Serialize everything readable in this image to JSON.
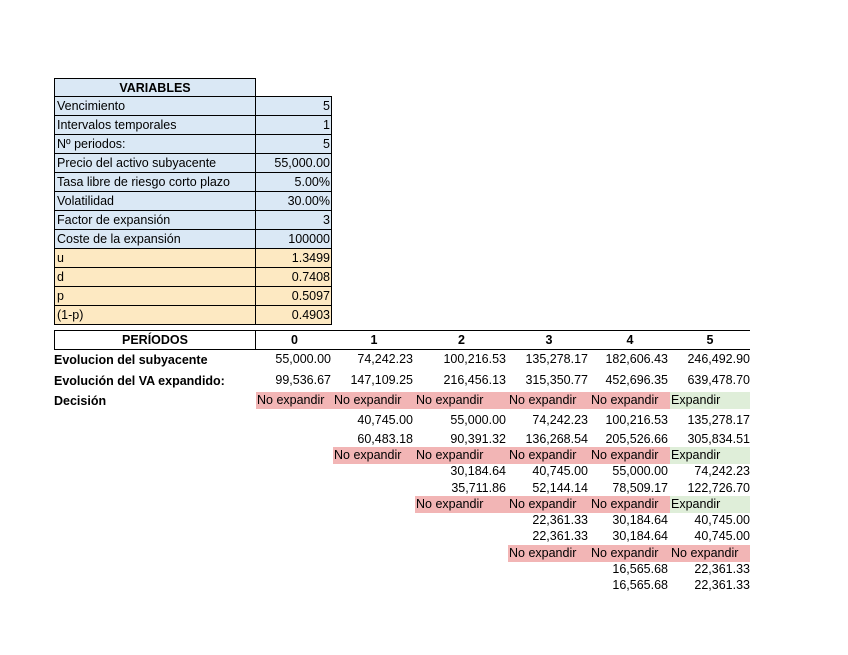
{
  "variables": {
    "header": "VARIABLES",
    "rows": [
      {
        "label": "Vencimiento",
        "value": "5"
      },
      {
        "label": "Intervalos temporales",
        "value": "1"
      },
      {
        "label": "Nº periodos:",
        "value": "5"
      },
      {
        "label": "Precio del activo subyacente",
        "value": "55,000.00"
      },
      {
        "label": "Tasa libre de riesgo corto plazo",
        "value": "5.00%"
      },
      {
        "label": "Volatilidad",
        "value": "30.00%"
      },
      {
        "label": "Factor de expansión",
        "value": "3"
      },
      {
        "label": "Coste de la expansión",
        "value": "100000"
      },
      {
        "label": "u",
        "value": "1.3499"
      },
      {
        "label": "d",
        "value": "0.7408"
      },
      {
        "label": "p",
        "value": "0.5097"
      },
      {
        "label": "(1-p)",
        "value": "0.4903"
      }
    ]
  },
  "periods": {
    "header": "PERÍODOS",
    "labels": [
      "0",
      "1",
      "2",
      "3",
      "4",
      "5"
    ]
  },
  "rows": {
    "evolucion_subyacente": {
      "label": "Evolucion del subyacente",
      "values": [
        "55,000.00",
        "74,242.23",
        "100,216.53",
        "135,278.17",
        "182,606.43",
        "246,492.90"
      ]
    },
    "evolucion_va": {
      "label": "Evolución del VA expandido:",
      "values": [
        "99,536.67",
        "147,109.25",
        "216,456.13",
        "315,350.77",
        "452,696.35",
        "639,478.70"
      ]
    },
    "decision_label": "Decisión"
  },
  "tree": {
    "d0": [
      "No expandir",
      "No expandir",
      "No expandir",
      "No expandir",
      "No expandir",
      "Expandir"
    ],
    "n1a": [
      "40,745.00",
      "55,000.00",
      "74,242.23",
      "100,216.53",
      "135,278.17"
    ],
    "n1b": [
      "60,483.18",
      "90,391.32",
      "136,268.54",
      "205,526.66",
      "305,834.51"
    ],
    "d1": [
      "No expandir",
      "No expandir",
      "No expandir",
      "No expandir",
      "Expandir"
    ],
    "n2a": [
      "30,184.64",
      "40,745.00",
      "55,000.00",
      "74,242.23"
    ],
    "n2b": [
      "35,711.86",
      "52,144.14",
      "78,509.17",
      "122,726.70"
    ],
    "d2": [
      "No expandir",
      "No expandir",
      "No expandir",
      "Expandir"
    ],
    "n3a": [
      "22,361.33",
      "30,184.64",
      "40,745.00"
    ],
    "n3b": [
      "22,361.33",
      "30,184.64",
      "40,745.00"
    ],
    "d3": [
      "No expandir",
      "No expandir",
      "No expandir"
    ],
    "n4a": [
      "16,565.68",
      "22,361.33"
    ],
    "n4b": [
      "16,565.68",
      "22,361.33"
    ]
  }
}
